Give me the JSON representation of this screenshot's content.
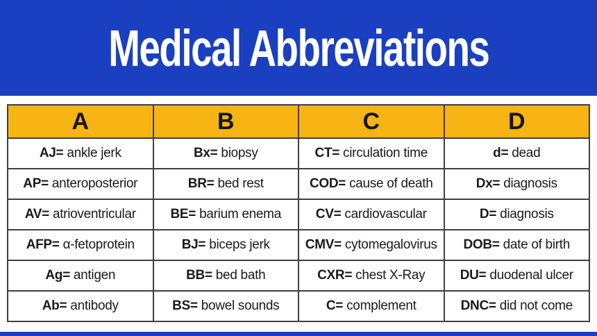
{
  "banner": {
    "title": "Medical Abbreviations",
    "background_color": "#1A3FC1",
    "text_color": "#FFFFFF"
  },
  "table": {
    "header_background_color": "#F8B314",
    "border_color": "#3F3F3F",
    "columns": [
      {
        "header": "A",
        "entries": [
          {
            "abbr": "AJ=",
            "def": "ankle jerk"
          },
          {
            "abbr": "AP=",
            "def": "anteroposterior"
          },
          {
            "abbr": "AV=",
            "def": "atrioventricular"
          },
          {
            "abbr": "AFP=",
            "def": "α-fetoprotein"
          },
          {
            "abbr": "Ag=",
            "def": "antigen"
          },
          {
            "abbr": "Ab=",
            "def": "antibody"
          }
        ]
      },
      {
        "header": "B",
        "entries": [
          {
            "abbr": "Bx=",
            "def": "biopsy"
          },
          {
            "abbr": "BR=",
            "def": "bed rest"
          },
          {
            "abbr": "BE=",
            "def": "barium enema"
          },
          {
            "abbr": "BJ=",
            "def": "biceps jerk"
          },
          {
            "abbr": "BB=",
            "def": "bed bath"
          },
          {
            "abbr": "BS=",
            "def": "bowel sounds"
          }
        ]
      },
      {
        "header": "C",
        "entries": [
          {
            "abbr": "CT=",
            "def": "circulation time"
          },
          {
            "abbr": "COD=",
            "def": "cause of death"
          },
          {
            "abbr": "CV=",
            "def": "cardiovascular"
          },
          {
            "abbr": "CMV=",
            "def": "cytomegalovirus"
          },
          {
            "abbr": "CXR=",
            "def": "chest X-Ray"
          },
          {
            "abbr": "C=",
            "def": "complement"
          }
        ]
      },
      {
        "header": "D",
        "entries": [
          {
            "abbr": "d=",
            "def": "dead"
          },
          {
            "abbr": "Dx=",
            "def": "diagnosis"
          },
          {
            "abbr": "D=",
            "def": "diagnosis"
          },
          {
            "abbr": "DOB=",
            "def": "date of birth"
          },
          {
            "abbr": "DU=",
            "def": "duodenal ulcer"
          },
          {
            "abbr": "DNC=",
            "def": "did not come"
          }
        ]
      }
    ]
  },
  "footer": {
    "background_color": "#1A3FC1"
  }
}
